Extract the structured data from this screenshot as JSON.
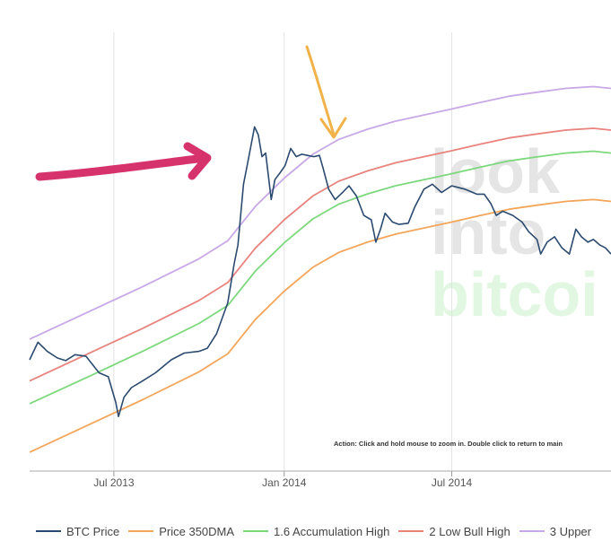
{
  "chart_data": {
    "type": "line",
    "title": "",
    "xlabel": "",
    "ylabel": "",
    "x_ticks": [
      "Jul 2013",
      "Jan 2014",
      "Jul 2014"
    ],
    "x_range": [
      "2013-04-01",
      "2014-12-20"
    ],
    "y_scale": "log",
    "y_range": [
      40,
      3000
    ],
    "grid": "vertical lines at x ticks",
    "legend_position": "bottom",
    "action_text": "Action: Click and hold mouse to zoom in.  Double click to return to main",
    "watermark": [
      "look",
      "into",
      "bitcoi"
    ],
    "series": [
      {
        "name": "BTC Price",
        "color": "#2b4a6f",
        "points": [
          [
            "2013-04-01",
            118
          ],
          [
            "2013-04-10",
            140
          ],
          [
            "2013-04-20",
            128
          ],
          [
            "2013-05-01",
            120
          ],
          [
            "2013-05-10",
            117
          ],
          [
            "2013-05-20",
            124
          ],
          [
            "2013-06-01",
            122
          ],
          [
            "2013-06-15",
            104
          ],
          [
            "2013-06-25",
            100
          ],
          [
            "2013-07-03",
            78
          ],
          [
            "2013-07-06",
            68
          ],
          [
            "2013-07-12",
            82
          ],
          [
            "2013-07-20",
            90
          ],
          [
            "2013-08-01",
            96
          ],
          [
            "2013-08-15",
            104
          ],
          [
            "2013-09-01",
            118
          ],
          [
            "2013-09-15",
            126
          ],
          [
            "2013-10-01",
            128
          ],
          [
            "2013-10-10",
            132
          ],
          [
            "2013-10-20",
            152
          ],
          [
            "2013-11-01",
            205
          ],
          [
            "2013-11-08",
            300
          ],
          [
            "2013-11-12",
            360
          ],
          [
            "2013-11-18",
            650
          ],
          [
            "2013-11-22",
            780
          ],
          [
            "2013-11-26",
            940
          ],
          [
            "2013-11-30",
            1135
          ],
          [
            "2013-12-04",
            1050
          ],
          [
            "2013-12-08",
            850
          ],
          [
            "2013-12-12",
            880
          ],
          [
            "2013-12-18",
            560
          ],
          [
            "2013-12-22",
            680
          ],
          [
            "2013-12-28",
            730
          ],
          [
            "2014-01-02",
            780
          ],
          [
            "2014-01-08",
            920
          ],
          [
            "2014-01-14",
            850
          ],
          [
            "2014-01-20",
            870
          ],
          [
            "2014-01-26",
            860
          ],
          [
            "2014-02-02",
            850
          ],
          [
            "2014-02-08",
            860
          ],
          [
            "2014-02-12",
            760
          ],
          [
            "2014-02-18",
            620
          ],
          [
            "2014-02-25",
            560
          ],
          [
            "2014-03-05",
            600
          ],
          [
            "2014-03-12",
            640
          ],
          [
            "2014-03-20",
            580
          ],
          [
            "2014-03-28",
            480
          ],
          [
            "2014-04-05",
            460
          ],
          [
            "2014-04-10",
            370
          ],
          [
            "2014-04-15",
            420
          ],
          [
            "2014-04-20",
            490
          ],
          [
            "2014-04-28",
            450
          ],
          [
            "2014-05-05",
            440
          ],
          [
            "2014-05-15",
            445
          ],
          [
            "2014-05-22",
            520
          ],
          [
            "2014-06-01",
            620
          ],
          [
            "2014-06-10",
            650
          ],
          [
            "2014-06-20",
            600
          ],
          [
            "2014-07-01",
            640
          ],
          [
            "2014-07-15",
            620
          ],
          [
            "2014-07-28",
            590
          ],
          [
            "2014-08-05",
            590
          ],
          [
            "2014-08-12",
            540
          ],
          [
            "2014-08-18",
            480
          ],
          [
            "2014-08-25",
            500
          ],
          [
            "2014-09-05",
            480
          ],
          [
            "2014-09-15",
            450
          ],
          [
            "2014-09-22",
            410
          ],
          [
            "2014-10-01",
            380
          ],
          [
            "2014-10-05",
            330
          ],
          [
            "2014-10-12",
            370
          ],
          [
            "2014-10-20",
            390
          ],
          [
            "2014-10-28",
            350
          ],
          [
            "2014-11-05",
            330
          ],
          [
            "2014-11-12",
            420
          ],
          [
            "2014-11-18",
            390
          ],
          [
            "2014-11-25",
            370
          ],
          [
            "2014-12-01",
            380
          ],
          [
            "2014-12-08",
            360
          ],
          [
            "2014-12-14",
            350
          ],
          [
            "2014-12-20",
            330
          ]
        ]
      },
      {
        "name": "Price 350DMA",
        "color": "#f3a65a",
        "points": [
          [
            "2013-04-01",
            48
          ],
          [
            "2013-06-01",
            62
          ],
          [
            "2013-08-01",
            80
          ],
          [
            "2013-10-01",
            105
          ],
          [
            "2013-11-01",
            125
          ],
          [
            "2013-12-01",
            175
          ],
          [
            "2014-01-01",
            230
          ],
          [
            "2014-02-01",
            290
          ],
          [
            "2014-03-01",
            335
          ],
          [
            "2014-04-01",
            370
          ],
          [
            "2014-05-01",
            400
          ],
          [
            "2014-06-01",
            425
          ],
          [
            "2014-07-01",
            450
          ],
          [
            "2014-08-01",
            480
          ],
          [
            "2014-09-01",
            510
          ],
          [
            "2014-10-01",
            530
          ],
          [
            "2014-11-01",
            550
          ],
          [
            "2014-12-01",
            560
          ],
          [
            "2014-12-20",
            550
          ]
        ]
      },
      {
        "name": "1.6 Accumulation High",
        "color": "#7dd87d",
        "points": [
          [
            "2013-04-01",
            77
          ],
          [
            "2013-06-01",
            99
          ],
          [
            "2013-08-01",
            128
          ],
          [
            "2013-10-01",
            168
          ],
          [
            "2013-11-01",
            200
          ],
          [
            "2013-12-01",
            280
          ],
          [
            "2014-01-01",
            368
          ],
          [
            "2014-02-01",
            464
          ],
          [
            "2014-03-01",
            536
          ],
          [
            "2014-04-01",
            592
          ],
          [
            "2014-05-01",
            640
          ],
          [
            "2014-06-01",
            680
          ],
          [
            "2014-07-01",
            720
          ],
          [
            "2014-08-01",
            768
          ],
          [
            "2014-09-01",
            816
          ],
          [
            "2014-10-01",
            848
          ],
          [
            "2014-11-01",
            880
          ],
          [
            "2014-12-01",
            896
          ],
          [
            "2014-12-20",
            880
          ]
        ]
      },
      {
        "name": "2 Low Bull High",
        "color": "#e8837e",
        "points": [
          [
            "2013-04-01",
            96
          ],
          [
            "2013-06-01",
            124
          ],
          [
            "2013-08-01",
            160
          ],
          [
            "2013-10-01",
            210
          ],
          [
            "2013-11-01",
            250
          ],
          [
            "2013-12-01",
            350
          ],
          [
            "2014-01-01",
            460
          ],
          [
            "2014-02-01",
            580
          ],
          [
            "2014-03-01",
            670
          ],
          [
            "2014-04-01",
            740
          ],
          [
            "2014-05-01",
            800
          ],
          [
            "2014-06-01",
            850
          ],
          [
            "2014-07-01",
            900
          ],
          [
            "2014-08-01",
            960
          ],
          [
            "2014-09-01",
            1020
          ],
          [
            "2014-10-01",
            1060
          ],
          [
            "2014-11-01",
            1100
          ],
          [
            "2014-12-01",
            1120
          ],
          [
            "2014-12-20",
            1100
          ]
        ]
      },
      {
        "name": "3 Upper",
        "color": "#c8a8e6",
        "points": [
          [
            "2013-04-01",
            144
          ],
          [
            "2013-06-01",
            186
          ],
          [
            "2013-08-01",
            240
          ],
          [
            "2013-10-01",
            315
          ],
          [
            "2013-11-01",
            375
          ],
          [
            "2013-12-01",
            525
          ],
          [
            "2014-01-01",
            690
          ],
          [
            "2014-02-01",
            870
          ],
          [
            "2014-03-01",
            1005
          ],
          [
            "2014-04-01",
            1110
          ],
          [
            "2014-05-01",
            1200
          ],
          [
            "2014-06-01",
            1275
          ],
          [
            "2014-07-01",
            1350
          ],
          [
            "2014-08-01",
            1440
          ],
          [
            "2014-09-01",
            1530
          ],
          [
            "2014-10-01",
            1590
          ],
          [
            "2014-11-01",
            1650
          ],
          [
            "2014-12-01",
            1680
          ],
          [
            "2014-12-20",
            1650
          ]
        ]
      }
    ]
  },
  "annotations": {
    "pink_arrow_color": "#d6336c",
    "orange_arrow_color": "#f2b24a"
  }
}
